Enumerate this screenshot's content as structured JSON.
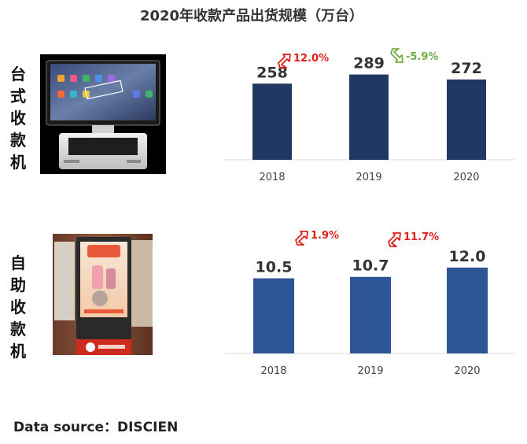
{
  "title": "2020年收款产品出货规模（万台）",
  "colors": {
    "bar_top": "#1f3864",
    "bar_bottom": "#2e5597",
    "up": "#e0201b",
    "down": "#70ad47",
    "axis_text": "#444444",
    "value_text": "#333333"
  },
  "chart_data": [
    {
      "type": "bar",
      "label": "台式收款机",
      "categories": [
        "2018",
        "2019",
        "2020"
      ],
      "values": [
        258,
        289,
        272
      ],
      "value_labels": [
        "258",
        "289",
        "272"
      ],
      "growth": [
        {
          "between": [
            "2018",
            "2019"
          ],
          "text": "12.0%",
          "direction": "up"
        },
        {
          "between": [
            "2019",
            "2020"
          ],
          "text": "-5.9%",
          "direction": "down"
        }
      ],
      "ylim": [
        0,
        400
      ]
    },
    {
      "type": "bar",
      "label": "自助收款机",
      "categories": [
        "2018",
        "2019",
        "2020"
      ],
      "values": [
        10.5,
        10.7,
        12.0
      ],
      "value_labels": [
        "10.5",
        "10.7",
        "12.0"
      ],
      "growth": [
        {
          "between": [
            "2018",
            "2019"
          ],
          "text": "1.9%",
          "direction": "up"
        },
        {
          "between": [
            "2019",
            "2020"
          ],
          "text": "11.7%",
          "direction": "up"
        }
      ],
      "ylim": [
        0,
        16.5
      ]
    }
  ],
  "source": {
    "prefix": "Data source：",
    "name": "DISCIEN"
  }
}
